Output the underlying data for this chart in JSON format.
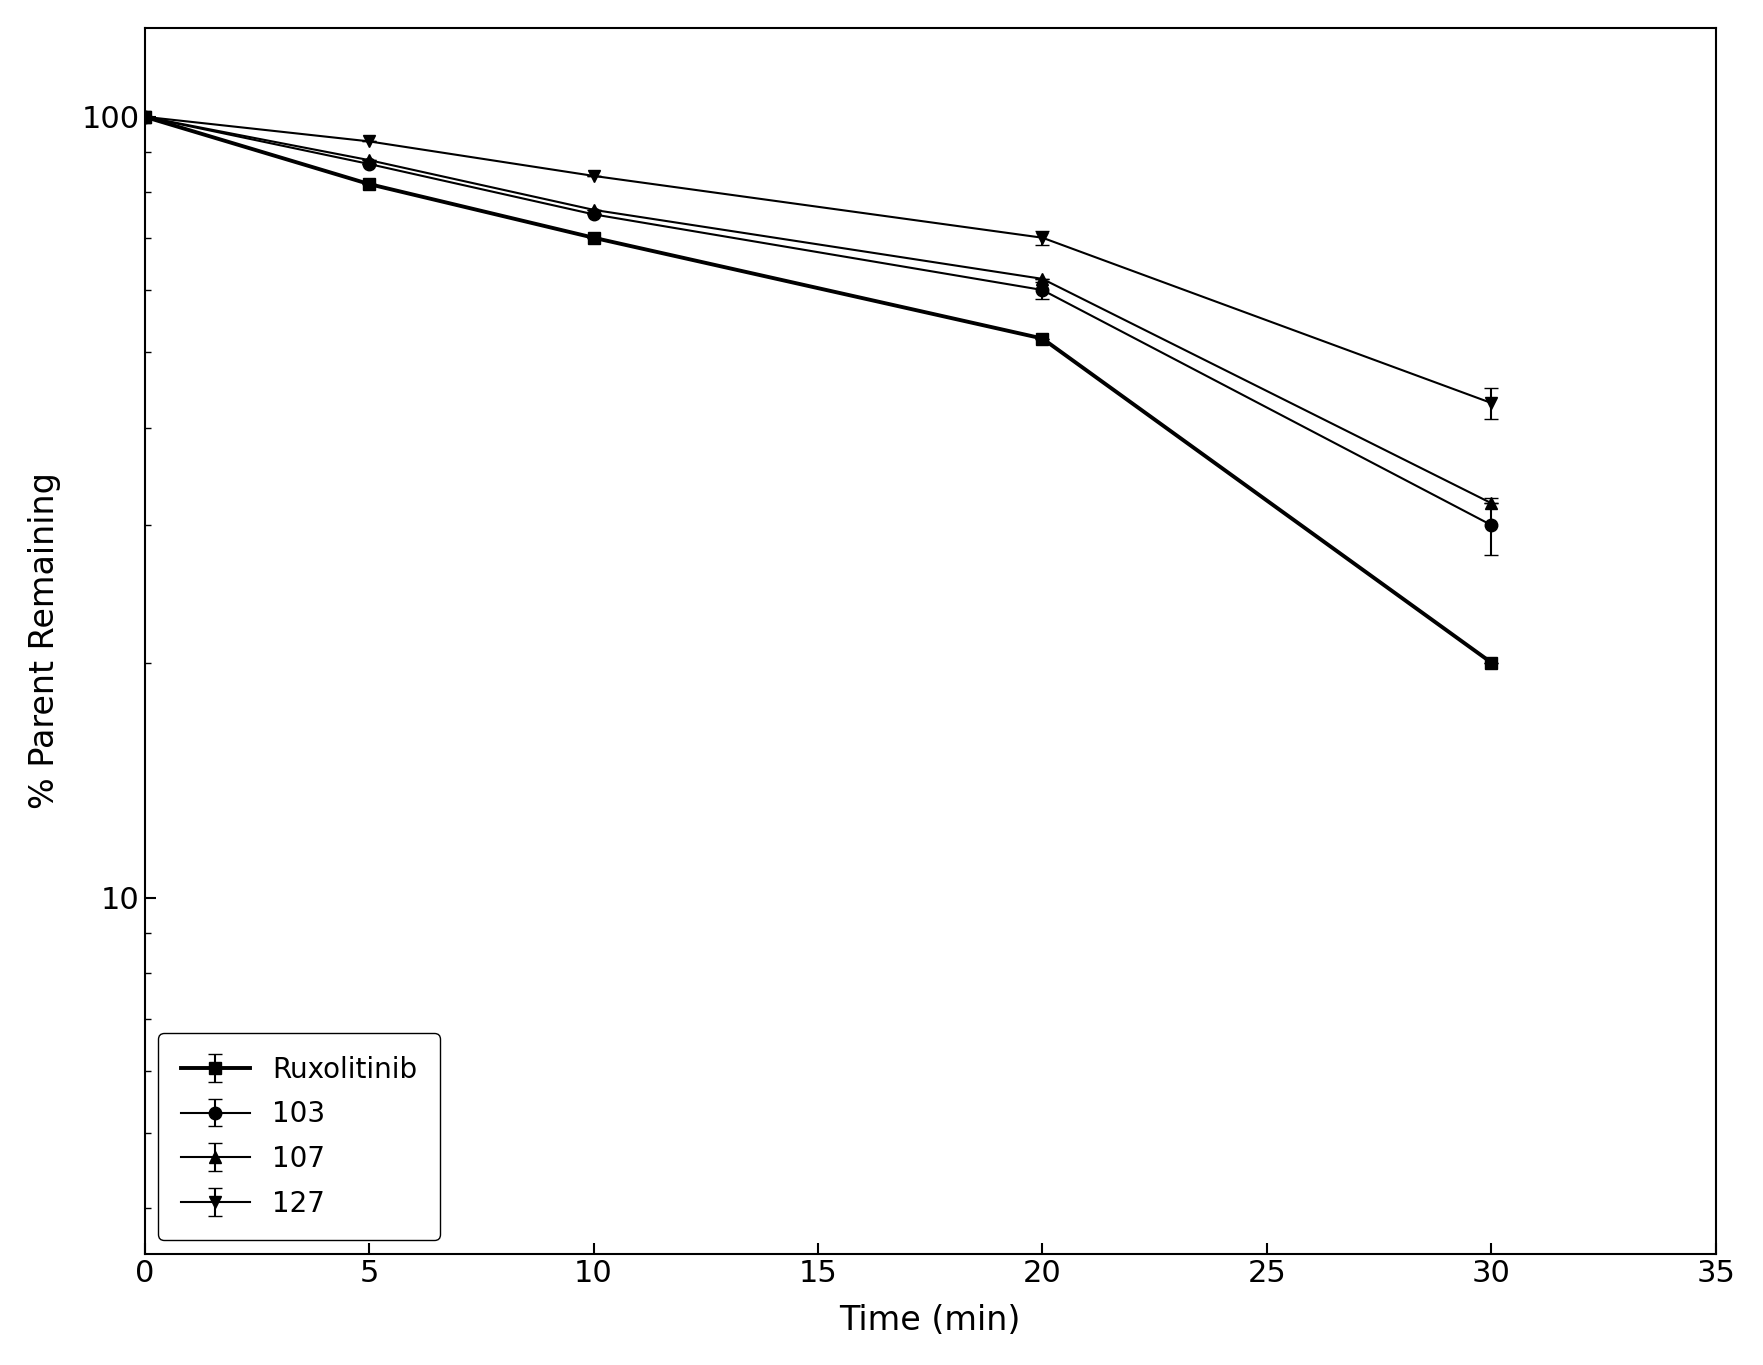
{
  "series": [
    {
      "label": "Ruxolitinib",
      "x": [
        0,
        5,
        10,
        20,
        30
      ],
      "y": [
        100,
        82,
        70,
        52,
        20
      ],
      "yerr": [
        0,
        0,
        0,
        0,
        0
      ],
      "marker": "s",
      "linewidth": 2.8,
      "markersize": 9,
      "color": "#000000",
      "zorder": 4
    },
    {
      "label": "103",
      "x": [
        0,
        5,
        10,
        20,
        30
      ],
      "y": [
        100,
        87,
        75,
        60,
        30
      ],
      "yerr": [
        0,
        0,
        0,
        1.5,
        2.5
      ],
      "marker": "o",
      "linewidth": 1.5,
      "markersize": 9,
      "color": "#000000",
      "zorder": 3
    },
    {
      "label": "107",
      "x": [
        0,
        5,
        10,
        20,
        30
      ],
      "y": [
        100,
        88,
        76,
        62,
        32
      ],
      "yerr": [
        0,
        0,
        0,
        0,
        0
      ],
      "marker": "^",
      "linewidth": 1.5,
      "markersize": 9,
      "color": "#000000",
      "zorder": 3
    },
    {
      "label": "127",
      "x": [
        0,
        5,
        10,
        20,
        30
      ],
      "y": [
        100,
        93,
        84,
        70,
        43
      ],
      "yerr": [
        0,
        0,
        0,
        1.5,
        2.0
      ],
      "marker": "v",
      "linewidth": 1.5,
      "markersize": 9,
      "color": "#000000",
      "zorder": 3
    }
  ],
  "xlabel": "Time (min)",
  "ylabel": "% Parent Remaining",
  "xlim": [
    0,
    35
  ],
  "ylim": [
    3.5,
    130
  ],
  "xticks": [
    0,
    5,
    10,
    15,
    20,
    25,
    30,
    35
  ],
  "background_color": "#ffffff",
  "axis_color": "#000000",
  "fig_width": 17.63,
  "fig_height": 13.65,
  "dpi": 100
}
